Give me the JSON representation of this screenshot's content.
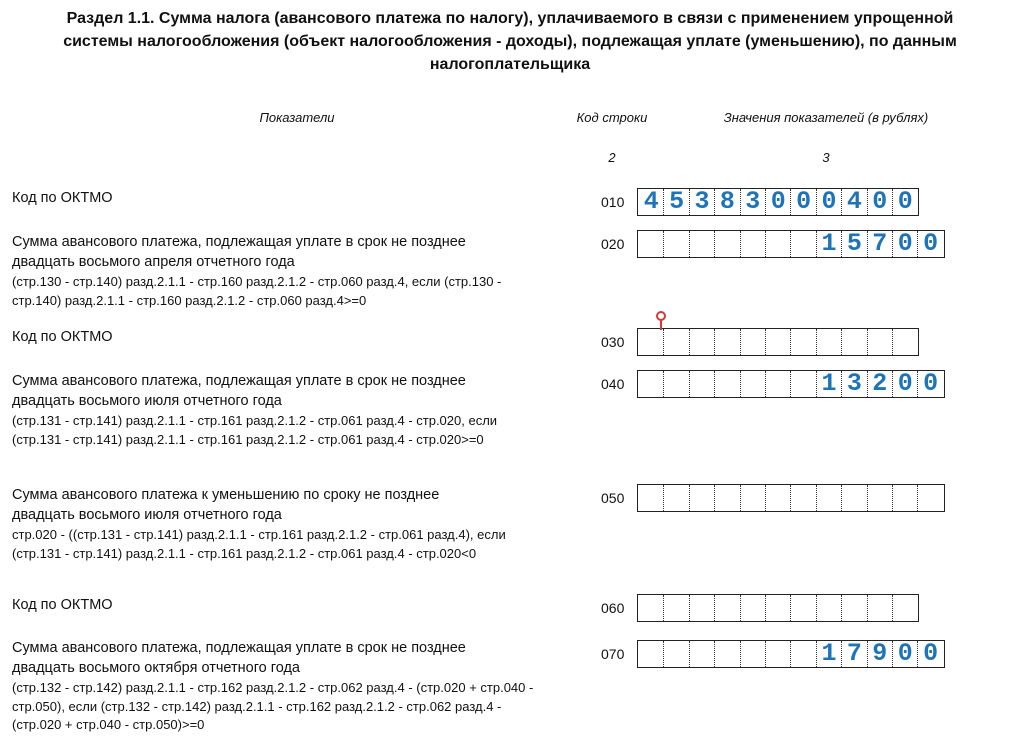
{
  "header": {
    "title": [
      "Раздел 1.1. Сумма налога (авансового платежа по налогу), уплачиваемого в связи с применением упрощенной",
      "системы налогообложения (объект налогообложения - доходы), подлежащая уплате (уменьшению), по данным",
      "налогоплательщика"
    ]
  },
  "columns": {
    "indicators": "Показатели",
    "code": "Код строки",
    "values": "Значения показателей (в рублях)",
    "code_number": "2",
    "values_number": "3"
  },
  "rows": [
    {
      "label": [
        "Код по ОКТМО"
      ],
      "formula": [],
      "code": "010",
      "value": "45383000400"
    },
    {
      "label": [
        "Сумма авансового платежа, подлежащая уплате в срок не позднее",
        "двадцать восьмого апреля отчетного года"
      ],
      "formula": [
        "(стр.130 - стр.140) разд.2.1.1 - стр.160 разд.2.1.2 - стр.060 разд.4, если (стр.130 -",
        "стр.140) разд.2.1.1 - стр.160 разд.2.1.2 - стр.060 разд.4>=0"
      ],
      "code": "020",
      "value": "15700"
    },
    {
      "label": [
        "Код по ОКТМО"
      ],
      "formula": [],
      "code": "030",
      "value": ""
    },
    {
      "label": [
        "Сумма авансового платежа, подлежащая уплате в срок не позднее",
        "двадцать восьмого июля отчетного года"
      ],
      "formula": [
        "(стр.131 - стр.141) разд.2.1.1 - стр.161 разд.2.1.2 - стр.061 разд.4 - стр.020, если",
        "(стр.131 - стр.141) разд.2.1.1 - стр.161 разд.2.1.2 - стр.061 разд.4 - стр.020>=0"
      ],
      "code": "040",
      "value": "13200"
    },
    {
      "label": [
        "Сумма авансового платежа к уменьшению по сроку не позднее",
        "двадцать восьмого июля отчетного года"
      ],
      "formula": [
        "стр.020 - ((стр.131 - стр.141) разд.2.1.1 - стр.161 разд.2.1.2 - стр.061 разд.4), если",
        "(стр.131 - стр.141) разд.2.1.1 - стр.161 разд.2.1.2 - стр.061 разд.4 - стр.020<0"
      ],
      "code": "050",
      "value": ""
    },
    {
      "label": [
        "Код по ОКТМО"
      ],
      "formula": [],
      "code": "060",
      "value": ""
    },
    {
      "label": [
        "Сумма авансового платежа, подлежащая уплате в срок не позднее",
        "двадцать восьмого октября отчетного года"
      ],
      "formula": [
        "(стр.132 - стр.142) разд.2.1.1 - стр.162 разд.2.1.2 - стр.062 разд.4 - (стр.020 + стр.040 -",
        "стр.050), если (стр.132 - стр.142) разд.2.1.1 - стр.162 разд.2.1.2 - стр.062 разд.4 -",
        "(стр.020 + стр.040 - стр.050)>=0"
      ],
      "code": "070",
      "value": "17900"
    }
  ]
}
